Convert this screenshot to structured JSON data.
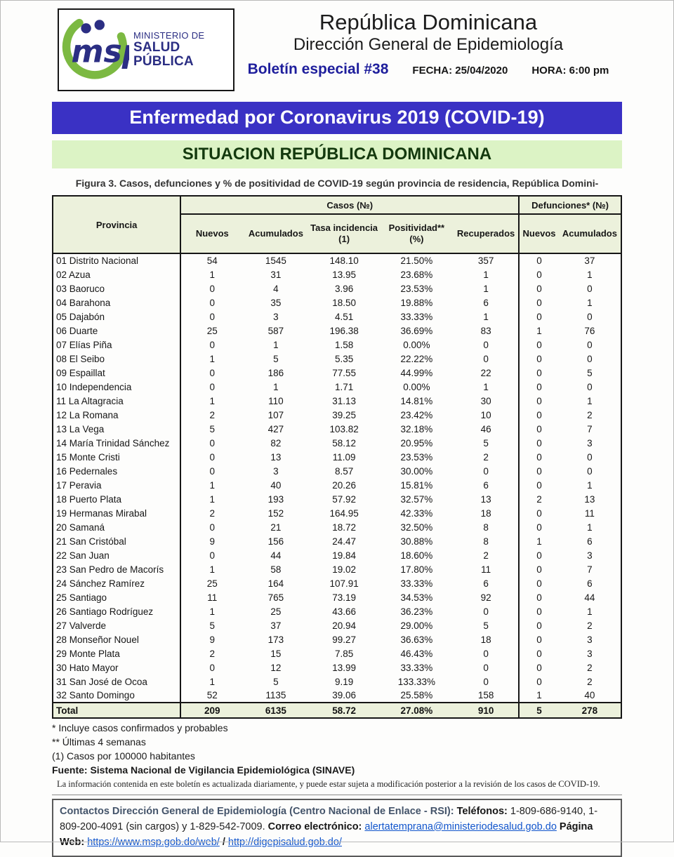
{
  "colors": {
    "banner_blue": "#3a31c4",
    "banner_green_bg": "#dcf3c5",
    "banner_green_text": "#14390e",
    "table_head_bg": "#ecf1dc",
    "logo_navy": "#2b2e83",
    "logo_green": "#7cb942",
    "boletin_navy": "#1e1e9c",
    "contact_heading": "#44546a",
    "link_blue": "#1155cc"
  },
  "header": {
    "logo": {
      "acronym": "msp",
      "org_line1": "MINISTERIO DE",
      "org_line2": "SALUD PÚBLICA"
    },
    "title1": "República Dominicana",
    "title2": "Dirección General de Epidemiología",
    "bulletin": "Boletín especial #38",
    "date_label": "FECHA: 25/04/2020",
    "time_label": "HORA: 6:00 pm"
  },
  "banners": {
    "blue": "Enfermedad por Coronavirus 2019 (COVID-19)",
    "green": "SITUACION REPÚBLICA DOMINICANA"
  },
  "figure_caption": "Figura 3. Casos, defunciones y % de positividad de COVID-19 según provincia de residencia, República Domini-",
  "table": {
    "group_headers": {
      "provincia": "Provincia",
      "casos": "Casos (№)",
      "defunciones": "Defunciones* (№)"
    },
    "sub_headers": [
      {
        "label": "Nuevos",
        "sub": ""
      },
      {
        "label": "Acumulados",
        "sub": ""
      },
      {
        "label": "Tasa incidencia",
        "sub": "(1)"
      },
      {
        "label": "Positividad**",
        "sub": "(%)"
      },
      {
        "label": "Recuperados",
        "sub": ""
      },
      {
        "label": "Nuevos",
        "sub": ""
      },
      {
        "label": "Acumulados",
        "sub": ""
      }
    ],
    "rows": [
      [
        "01 Distrito Nacional",
        "54",
        "1545",
        "148.10",
        "21.50%",
        "357",
        "0",
        "37"
      ],
      [
        "02 Azua",
        "1",
        "31",
        "13.95",
        "23.68%",
        "1",
        "0",
        "1"
      ],
      [
        "03 Baoruco",
        "0",
        "4",
        "3.96",
        "23.53%",
        "1",
        "0",
        "0"
      ],
      [
        "04 Barahona",
        "0",
        "35",
        "18.50",
        "19.88%",
        "6",
        "0",
        "1"
      ],
      [
        "05 Dajabón",
        "0",
        "3",
        "4.51",
        "33.33%",
        "1",
        "0",
        "0"
      ],
      [
        "06 Duarte",
        "25",
        "587",
        "196.38",
        "36.69%",
        "83",
        "1",
        "76"
      ],
      [
        "07 Elías Piña",
        "0",
        "1",
        "1.58",
        "0.00%",
        "0",
        "0",
        "0"
      ],
      [
        "08 El Seibo",
        "1",
        "5",
        "5.35",
        "22.22%",
        "0",
        "0",
        "0"
      ],
      [
        "09 Espaillat",
        "0",
        "186",
        "77.55",
        "44.99%",
        "22",
        "0",
        "5"
      ],
      [
        "10 Independencia",
        "0",
        "1",
        "1.71",
        "0.00%",
        "1",
        "0",
        "0"
      ],
      [
        "11 La Altagracia",
        "1",
        "110",
        "31.13",
        "14.81%",
        "30",
        "0",
        "1"
      ],
      [
        "12 La Romana",
        "2",
        "107",
        "39.25",
        "23.42%",
        "10",
        "0",
        "2"
      ],
      [
        "13 La Vega",
        "5",
        "427",
        "103.82",
        "32.18%",
        "46",
        "0",
        "7"
      ],
      [
        "14 María Trinidad Sánchez",
        "0",
        "82",
        "58.12",
        "20.95%",
        "5",
        "0",
        "3"
      ],
      [
        "15 Monte Cristi",
        "0",
        "13",
        "11.09",
        "23.53%",
        "2",
        "0",
        "0"
      ],
      [
        "16 Pedernales",
        "0",
        "3",
        "8.57",
        "30.00%",
        "0",
        "0",
        "0"
      ],
      [
        "17 Peravia",
        "1",
        "40",
        "20.26",
        "15.81%",
        "6",
        "0",
        "1"
      ],
      [
        "18 Puerto Plata",
        "1",
        "193",
        "57.92",
        "32.57%",
        "13",
        "2",
        "13"
      ],
      [
        "19 Hermanas Mirabal",
        "2",
        "152",
        "164.95",
        "42.33%",
        "18",
        "0",
        "11"
      ],
      [
        "20 Samaná",
        "0",
        "21",
        "18.72",
        "32.50%",
        "8",
        "0",
        "1"
      ],
      [
        "21 San Cristóbal",
        "9",
        "156",
        "24.47",
        "30.88%",
        "8",
        "1",
        "6"
      ],
      [
        "22 San Juan",
        "0",
        "44",
        "19.84",
        "18.60%",
        "2",
        "0",
        "3"
      ],
      [
        "23 San Pedro de Macorís",
        "1",
        "58",
        "19.02",
        "17.80%",
        "11",
        "0",
        "7"
      ],
      [
        "24 Sánchez Ramírez",
        "25",
        "164",
        "107.91",
        "33.33%",
        "6",
        "0",
        "6"
      ],
      [
        "25 Santiago",
        "11",
        "765",
        "73.19",
        "34.53%",
        "92",
        "0",
        "44"
      ],
      [
        "26 Santiago Rodríguez",
        "1",
        "25",
        "43.66",
        "36.23%",
        "0",
        "0",
        "1"
      ],
      [
        "27 Valverde",
        "5",
        "37",
        "20.94",
        "29.00%",
        "5",
        "0",
        "2"
      ],
      [
        "28 Monseñor Nouel",
        "9",
        "173",
        "99.27",
        "36.63%",
        "18",
        "0",
        "3"
      ],
      [
        "29 Monte Plata",
        "2",
        "15",
        "7.85",
        "46.43%",
        "0",
        "0",
        "3"
      ],
      [
        "30 Hato Mayor",
        "0",
        "12",
        "13.99",
        "33.33%",
        "0",
        "0",
        "2"
      ],
      [
        "31 San José de Ocoa",
        "1",
        "5",
        "9.19",
        "133.33%",
        "0",
        "0",
        "2"
      ],
      [
        "32 Santo Domingo",
        "52",
        "1135",
        "39.06",
        "25.58%",
        "158",
        "1",
        "40"
      ]
    ],
    "total": [
      "Total",
      "209",
      "6135",
      "58.72",
      "27.08%",
      "910",
      "5",
      "278"
    ]
  },
  "footnotes": {
    "note1": "* Incluye casos confirmados y probables",
    "note2": "** Últimas 4 semanas",
    "note3": "(1) Casos por 100000 habitantes",
    "source": "Fuente: Sistema Nacional de Vigilancia Epidemiológica (SINAVE)",
    "disclaimer": "La información contenida en este boletín es actualizada diariamente, y puede estar sujeta a modificación posterior a la revisión de los casos de COVID-19."
  },
  "contact": {
    "heading": "Contactos Dirección General de Epidemiología (Centro Nacional de Enlace - RSI):",
    "phones_label": "Teléfonos:",
    "phones": "1-809-686-9140, 1-809-200-4091 (sin cargos) y 1-829-542-7009.",
    "email_label": "Correo electrónico:",
    "email": "alertatemprana@ministeriodesalud.gob.do",
    "web_label": "Página Web:",
    "web1": "https://www.msp.gob.do/web/",
    "web_sep": "/",
    "web2": "http://digepisalud.gob.do/"
  }
}
